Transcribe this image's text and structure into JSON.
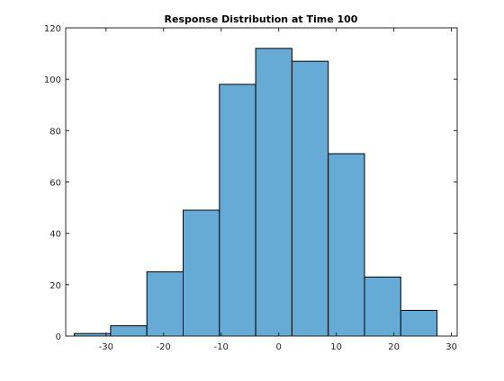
{
  "chart_data": {
    "type": "bar",
    "title": "Response Distribution at Time 100",
    "xlabel": "",
    "ylabel": "",
    "bin_edges": [
      -35.5,
      -29.2,
      -22.9,
      -16.6,
      -10.3,
      -4.0,
      2.3,
      8.6,
      14.9,
      21.2,
      27.5
    ],
    "values": [
      1,
      4,
      25,
      49,
      98,
      112,
      107,
      71,
      23,
      10
    ],
    "xlim": [
      -37,
      31
    ],
    "ylim": [
      0,
      120
    ],
    "xticks": [
      -30,
      -20,
      -10,
      0,
      10,
      20,
      30
    ],
    "yticks": [
      0,
      20,
      40,
      60,
      80,
      100,
      120
    ],
    "grid": false,
    "bar_color": "#66aad6",
    "edge_color": "#000000"
  }
}
